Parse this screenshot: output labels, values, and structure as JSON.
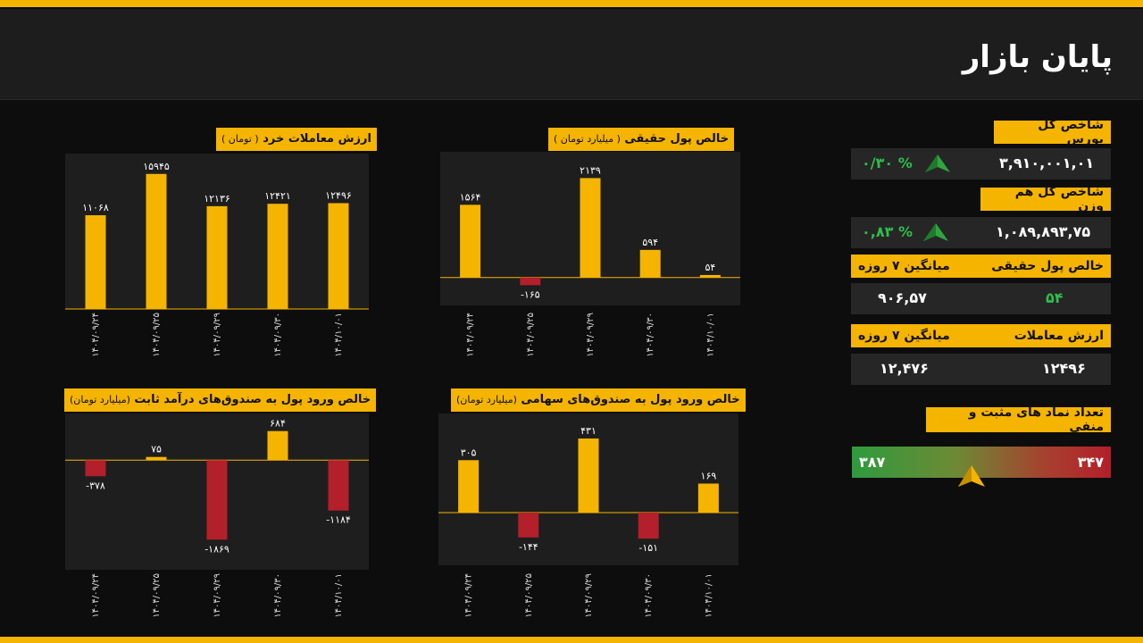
{
  "header": {
    "title": "پایان بازار"
  },
  "sidebar": {
    "total_index": {
      "label": "شاخص کل بورس",
      "value": "۳,۹۱۰,۰۰۱,۰۱",
      "change": "۰/۳۰ %"
    },
    "equal_weight_index": {
      "label": "شاخص کل هم وزن",
      "value": "۱,۰۸۹,۸۹۳,۷۵",
      "change": "۰,۸۳ %"
    },
    "real_money": {
      "label": "خالص پول حقیقی",
      "avg_label": "میانگین ۷ روزه",
      "value": "۵۴",
      "avg_value": "۹۰۶,۵۷"
    },
    "trade_value": {
      "label": "ارزش معاملات",
      "avg_label": "میانگین ۷ روزه",
      "value": "۱۲۴۹۶",
      "avg_value": "۱۲,۴۷۶"
    },
    "breadth": {
      "label": "تعداد نماد های مثبت و منفی",
      "positive": "۳۸۷",
      "negative": "۳۴۷"
    }
  },
  "colors": {
    "accent": "#f5b400",
    "positive": "#2fbf4a",
    "negative": "#b31f2a",
    "bar": "#f5b400"
  },
  "icons": {
    "up": "up-arrow-icon",
    "pointer": "pointer-icon"
  },
  "chart_data": [
    {
      "id": "retail",
      "type": "bar",
      "title": "ارزش معاملات خرد",
      "subtitle": "( تومان )",
      "categories": [
        "۱۴۰۴/۰۹/۲۴",
        "۱۴۰۴/۰۹/۲۵",
        "۱۴۰۴/۰۹/۲۹",
        "۱۴۰۴/۰۹/۳۰",
        "۱۴۰۴/۱۰/۰۱"
      ],
      "values": [
        11068,
        15945,
        12136,
        12421,
        12496
      ],
      "labels": [
        "۱۱۰۶۸",
        "۱۵۹۴۵",
        "۱۲۱۳۶",
        "۱۲۴۲۱",
        "۱۲۴۹۶"
      ],
      "ylim": [
        0,
        17500
      ]
    },
    {
      "id": "real",
      "type": "bar",
      "title": "خالص پول حقیقی",
      "subtitle": "( میلیارد تومان )",
      "categories": [
        "۱۴۰۴/۰۹/۲۴",
        "۱۴۰۴/۰۹/۲۵",
        "۱۴۰۴/۰۹/۲۹",
        "۱۴۰۴/۰۹/۳۰",
        "۱۴۰۴/۱۰/۰۱"
      ],
      "values": [
        1564,
        -165,
        2139,
        594,
        54
      ],
      "labels": [
        "۱۵۶۴",
        "-۱۶۵",
        "۲۱۳۹",
        "۵۹۴",
        "۵۴"
      ],
      "ylim": [
        -600,
        2550
      ]
    },
    {
      "id": "fixed",
      "type": "bar",
      "title": "خالص ورود پول به صندوق‌های درآمد ثابت",
      "subtitle": "(میلیارد تومان)",
      "categories": [
        "۱۴۰۴/۰۹/۲۴",
        "۱۴۰۴/۰۹/۲۵",
        "۱۴۰۴/۰۹/۲۹",
        "۱۴۰۴/۰۹/۳۰",
        "۱۴۰۴/۱۰/۰۱"
      ],
      "values": [
        -378,
        75,
        -1869,
        684,
        -1184
      ],
      "labels": [
        "-۳۷۸",
        "۷۵",
        "-۱۸۶۹",
        "۶۸۴",
        "-۱۱۸۴"
      ],
      "ylim": [
        -2450,
        950
      ]
    },
    {
      "id": "equity",
      "type": "bar",
      "title": "خالص ورود پول به صندوق‌های سهامی",
      "subtitle": "(میلیارد تومان)",
      "categories": [
        "۱۴۰۴/۰۹/۲۴",
        "۱۴۰۴/۰۹/۲۵",
        "۱۴۰۴/۰۹/۲۹",
        "۱۴۰۴/۰۹/۳۰",
        "۱۴۰۴/۱۰/۰۱"
      ],
      "values": [
        305,
        -144,
        431,
        -151,
        169
      ],
      "labels": [
        "۳۰۵",
        "-۱۴۴",
        "۴۳۱",
        "-۱۵۱",
        "۱۶۹"
      ],
      "ylim": [
        -280,
        540
      ]
    }
  ]
}
